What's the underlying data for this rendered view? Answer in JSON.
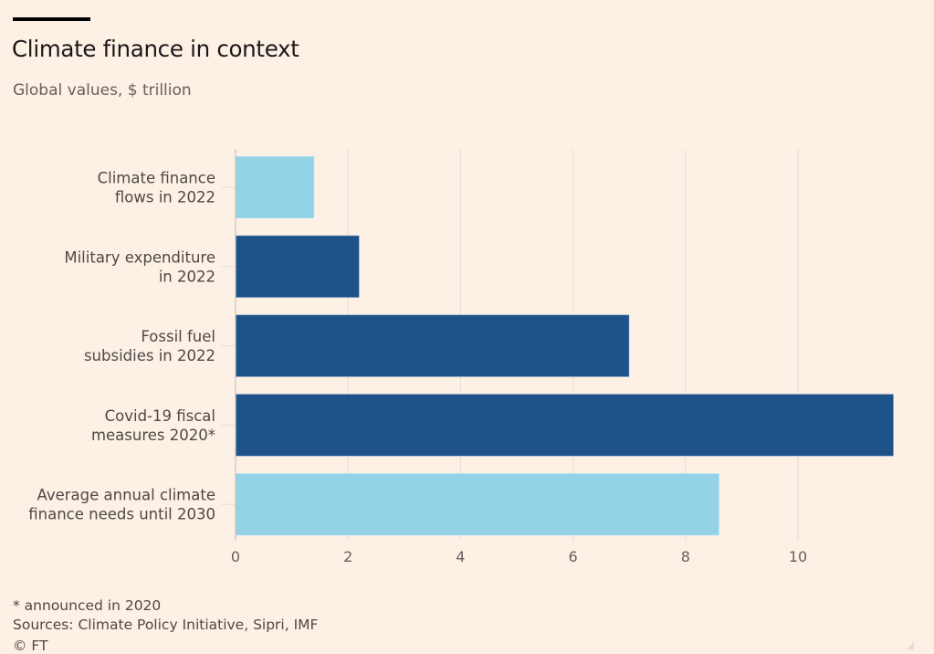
{
  "chart_data": {
    "type": "bar",
    "orientation": "horizontal",
    "title": "Climate finance in context",
    "subtitle": "Global values, $ trillion",
    "xlabel": "",
    "ylabel": "",
    "xlim": [
      0,
      11.9
    ],
    "grid": true,
    "xticks": [
      0,
      2,
      4,
      6,
      8,
      10
    ],
    "xtick_labels": [
      "0",
      "2",
      "4",
      "6",
      "8",
      "10"
    ],
    "categories": [
      [
        "Climate finance",
        "flows in 2022"
      ],
      [
        "Military expenditure",
        "in 2022"
      ],
      [
        "Fossil fuel",
        "subsidies in 2022"
      ],
      [
        "Covid-19 fiscal",
        "measures 2020*"
      ],
      [
        "Average annual climate",
        "finance needs until 2030"
      ]
    ],
    "values": [
      1.4,
      2.2,
      7.0,
      11.7,
      8.6
    ],
    "bar_colors": [
      "#94d3e6",
      "#1e538a",
      "#1e538a",
      "#1e538a",
      "#94d3e6"
    ],
    "colors": {
      "light_blue": "#94d3e6",
      "dark_blue": "#1e538a",
      "gridline": "#e9e0d8",
      "axis": "#c8c0b9",
      "background": "#fdf1e6"
    }
  },
  "footnote": "* announced in 2020",
  "sources": "Sources: Climate Policy Initiative, Sipri, IMF",
  "copyright": "© FT"
}
